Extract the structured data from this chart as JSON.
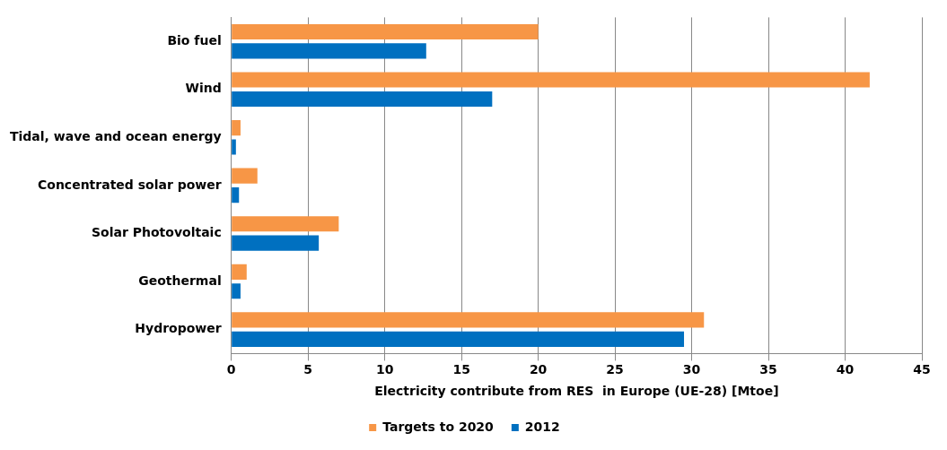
{
  "chart_data": {
    "type": "bar",
    "orientation": "horizontal",
    "xlabel": "Electricity contribute from RES  in Europe (UE-28) [Mtoe]",
    "categories": [
      "Bio fuel",
      "Wind",
      "Tidal, wave and ocean energy",
      "Concentrated solar power",
      "Solar Photovoltaic",
      "Geothermal",
      "Hydropower"
    ],
    "series": [
      {
        "name": "Targets to 2020",
        "color": "#f79646",
        "values": [
          20,
          41.6,
          0.6,
          1.7,
          7,
          1,
          30.8
        ]
      },
      {
        "name": "2012",
        "color": "#0070c0",
        "values": [
          12.7,
          17,
          0.3,
          0.5,
          5.7,
          0.6,
          29.5
        ]
      }
    ],
    "xlim": [
      0,
      45
    ],
    "xticks": [
      0,
      5,
      10,
      15,
      20,
      25,
      30,
      35,
      40,
      45
    ],
    "grid": "x",
    "legend": "bottom"
  }
}
